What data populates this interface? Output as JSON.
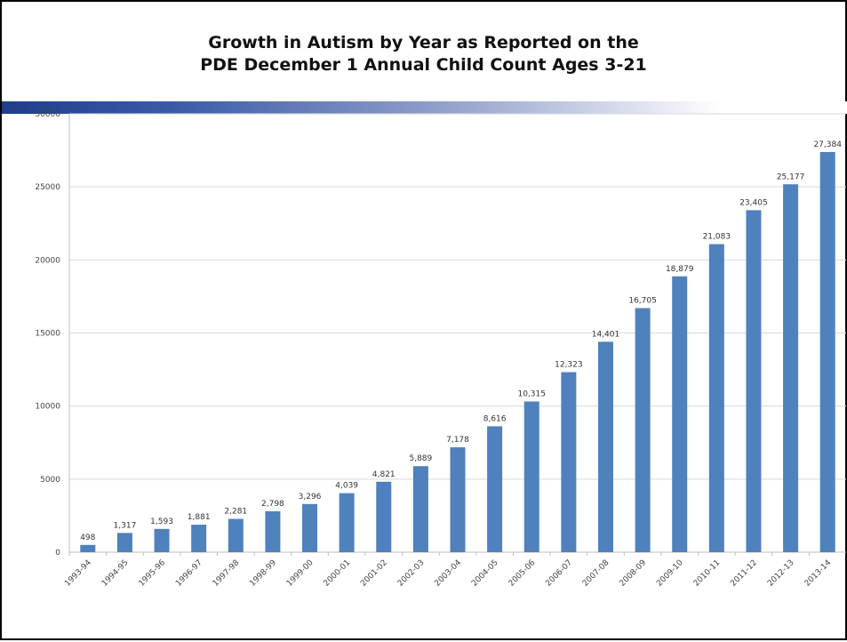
{
  "slide": {
    "title_line1": "Growth in Autism by Year as Reported on the",
    "title_line2": "PDE December 1 Annual Child Count Ages 3-21"
  },
  "chart_data": {
    "type": "bar",
    "title": "",
    "xlabel": "",
    "ylabel": "",
    "ylim": [
      0,
      30000
    ],
    "yticks": [
      0,
      5000,
      10000,
      15000,
      20000,
      25000,
      30000
    ],
    "grid": true,
    "bar_color": "#4f81bd",
    "categories": [
      "1993-94",
      "1994-95",
      "1995-96",
      "1996-97",
      "1997-98",
      "1998-99",
      "1999-00",
      "2000-01",
      "2001-02",
      "2002-03",
      "2003-04",
      "2004-05",
      "2005-06",
      "2006-07",
      "2007-08",
      "2008-09",
      "2009-10",
      "2010-11",
      "2011-12",
      "2012-13",
      "2013-14"
    ],
    "values": [
      498,
      1317,
      1593,
      1881,
      2281,
      2798,
      3296,
      4039,
      4821,
      5889,
      7178,
      8616,
      10315,
      12323,
      14401,
      16705,
      18879,
      21083,
      23405,
      25177,
      27384
    ],
    "data_labels": [
      "498",
      "1,317",
      "1,593",
      "1,881",
      "2,281",
      "2,798",
      "3,296",
      "4,039",
      "4,821",
      "5,889",
      "7,178",
      "8,616",
      "10,315",
      "12,323",
      "14,401",
      "16,705",
      "18,879",
      "21,083",
      "23,405",
      "25,177",
      "27,384"
    ]
  }
}
